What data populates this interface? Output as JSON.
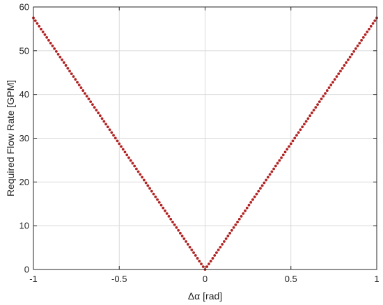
{
  "chart_data": {
    "type": "scatter",
    "xlabel": "Δα [rad]",
    "ylabel": "Required Flow Rate [GPM]",
    "xlim": [
      -1,
      1
    ],
    "ylim": [
      0,
      60
    ],
    "xticks": [
      -1,
      -0.5,
      0,
      0.5,
      1
    ],
    "xtick_labels": [
      "-1",
      "-0.5",
      "0",
      "0.5",
      "1"
    ],
    "yticks": [
      0,
      10,
      20,
      30,
      40,
      50,
      60
    ],
    "ytick_labels": [
      "0",
      "10",
      "20",
      "30",
      "40",
      "50",
      "60"
    ],
    "grid": true,
    "series": [
      {
        "marker_color": "#b22222",
        "x": [
          -1,
          -0.9,
          -0.8,
          -0.7,
          -0.6,
          -0.5,
          -0.4,
          -0.3,
          -0.2,
          -0.1,
          0,
          0.1,
          0.2,
          0.3,
          0.4,
          0.5,
          0.6,
          0.7,
          0.8,
          0.9,
          1
        ],
        "y": [
          57.5,
          51.75,
          46,
          40.25,
          34.5,
          28.75,
          23,
          17.25,
          11.5,
          5.75,
          0,
          5.75,
          11.5,
          17.25,
          23,
          28.75,
          34.5,
          40.25,
          46,
          51.75,
          57.5
        ]
      }
    ]
  }
}
